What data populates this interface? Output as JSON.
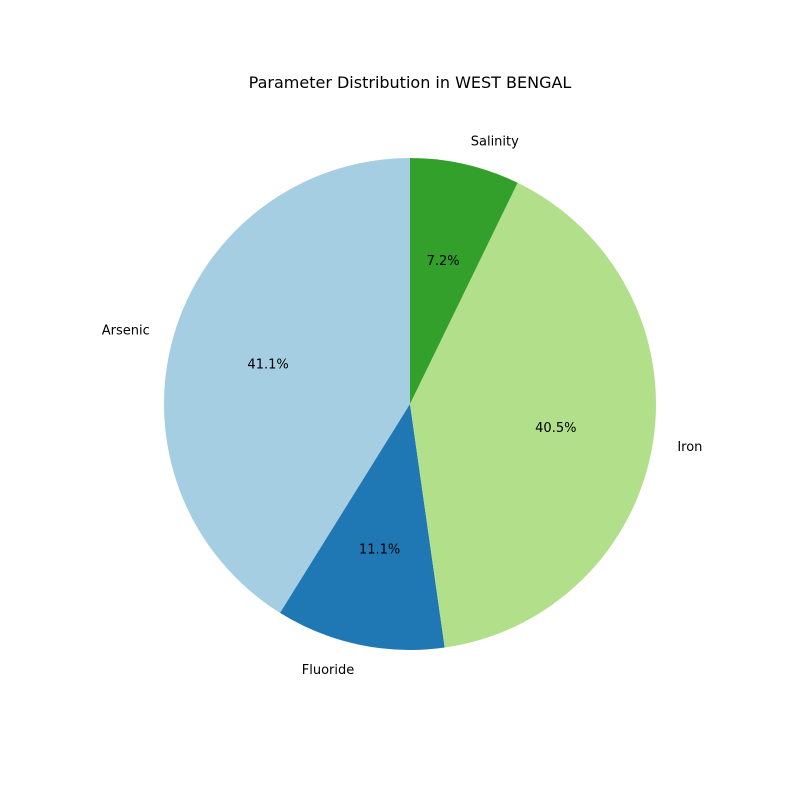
{
  "chart_data": {
    "type": "pie",
    "title": "Parameter Distribution in WEST BENGAL",
    "start_angle_deg": 90,
    "direction": "counterclockwise",
    "slices": [
      {
        "label": "Arsenic",
        "value": 41.1,
        "pct_label": "41.1%",
        "color": "#a6cee3"
      },
      {
        "label": "Fluoride",
        "value": 11.1,
        "pct_label": "11.1%",
        "color": "#1f78b4"
      },
      {
        "label": "Iron",
        "value": 40.5,
        "pct_label": "40.5%",
        "color": "#b2df8a"
      },
      {
        "label": "Salinity",
        "value": 7.2,
        "pct_label": "7.2%",
        "color": "#33a02c"
      }
    ]
  }
}
